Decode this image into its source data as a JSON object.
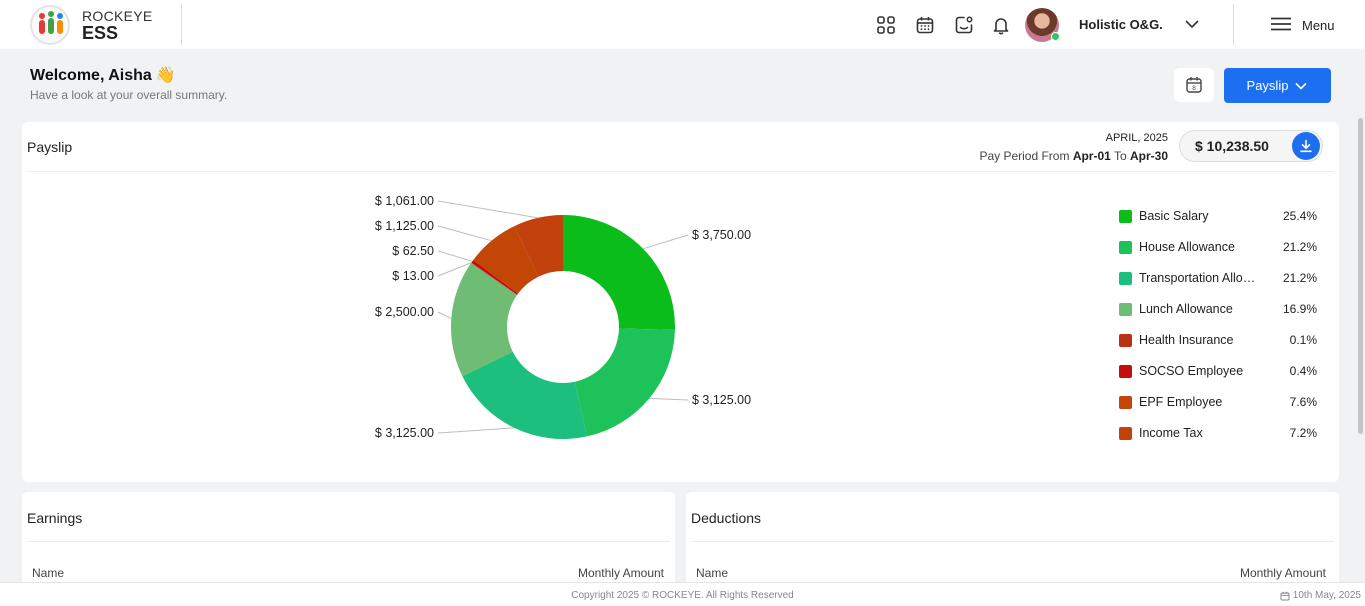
{
  "header": {
    "brand_top": "ROCKEYE",
    "brand_main": "ESS",
    "organization": "Holistic O&G.",
    "menu_label": "Menu",
    "icons": [
      "apps-grid-icon",
      "calendar-icon",
      "chat-icon",
      "bell-icon"
    ]
  },
  "welcome": {
    "greeting": "Welcome, Aisha",
    "emoji": "👋",
    "subtitle": "Have a look at your overall summary."
  },
  "toolbar": {
    "payslip_label": "Payslip",
    "calendar_day": "8"
  },
  "payslip": {
    "title": "Payslip",
    "month": "APRIL, 2025",
    "period_prefix": "Pay Period From",
    "period_from": "Apr-01",
    "period_to_word": "To",
    "period_to": "Apr-30",
    "net_amount": "$ 10,238.50"
  },
  "chart_data": {
    "type": "pie",
    "style": "donut",
    "currency": "$",
    "series": [
      {
        "name": "Basic Salary",
        "value": 3750.0,
        "label": "$ 3,750.00",
        "percent": "25.4%",
        "color": "#0bbd1b"
      },
      {
        "name": "House Allowance",
        "value": 3125.0,
        "label": "$ 3,125.00",
        "percent": "21.2%",
        "color": "#1dc25a"
      },
      {
        "name": "Transportation Allowance",
        "value": 3125.0,
        "label": "$ 3,125.00",
        "percent": "21.2%",
        "color": "#1cbf7e"
      },
      {
        "name": "Lunch Allowance",
        "value": 2500.0,
        "label": "$ 2,500.00",
        "percent": "16.9%",
        "color": "#6fbd74"
      },
      {
        "name": "Health Insurance",
        "value": 13.0,
        "label": "$ 13.00",
        "percent": "0.1%",
        "color": "#b93218"
      },
      {
        "name": "SOCSO Employee",
        "value": 62.5,
        "label": "$ 62.50",
        "percent": "0.4%",
        "color": "#c40d0d"
      },
      {
        "name": "EPF Employee",
        "value": 1125.0,
        "label": "$ 1,125.00",
        "percent": "7.6%",
        "color": "#c24707"
      },
      {
        "name": "Income Tax",
        "value": 1061.0,
        "label": "$ 1,061.00",
        "percent": "7.2%",
        "color": "#c2410c"
      }
    ],
    "legend_position": "right"
  },
  "earnings": {
    "title": "Earnings",
    "col_name": "Name",
    "col_amount": "Monthly Amount"
  },
  "deductions": {
    "title": "Deductions",
    "col_name": "Name",
    "col_amount": "Monthly Amount"
  },
  "footer": {
    "copyright": "Copyright 2025 © ROCKEYE. All Rights Reserved",
    "date": "10th May, 2025"
  }
}
